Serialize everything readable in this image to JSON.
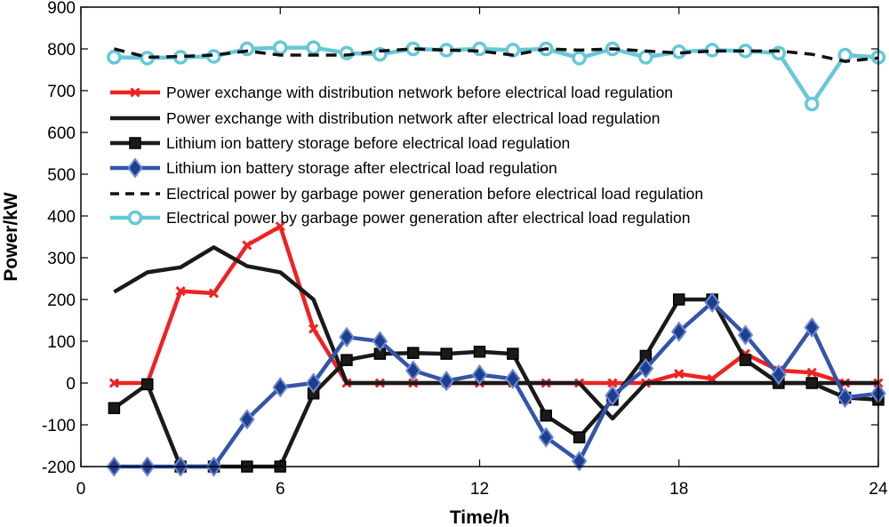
{
  "chart_data": {
    "type": "line",
    "title": "",
    "xlabel": "Time/h",
    "ylabel": "Power/kW",
    "xlim": [
      0,
      24
    ],
    "ylim": [
      -200,
      900
    ],
    "xticks": [
      0,
      6,
      12,
      18,
      24
    ],
    "xtick_labels": [
      "0",
      "6",
      "12",
      "18",
      "24"
    ],
    "yticks": [
      -200,
      -100,
      0,
      100,
      200,
      300,
      400,
      500,
      600,
      700,
      800,
      900
    ],
    "ytick_labels": [
      "-200",
      "-100",
      "0",
      "100",
      "200",
      "300",
      "400",
      "500",
      "600",
      "700",
      "800",
      "900"
    ],
    "grid": false,
    "legend_position": "upper-middle",
    "x": [
      1,
      2,
      3,
      4,
      5,
      6,
      7,
      8,
      9,
      10,
      11,
      12,
      13,
      14,
      15,
      16,
      17,
      18,
      19,
      20,
      21,
      22,
      23,
      24
    ],
    "series": [
      {
        "name": "Power exchange with distribution network before electrical load regulation",
        "color": "#ee2222",
        "dash": "solid",
        "marker": "x",
        "values": [
          0,
          0,
          220,
          215,
          330,
          375,
          130,
          0,
          0,
          0,
          0,
          0,
          0,
          0,
          0,
          0,
          0,
          22,
          10,
          70,
          30,
          25,
          0,
          0
        ]
      },
      {
        "name": "Power exchange with distribution network after electrical load regulation",
        "color": "#1a1a1a",
        "dash": "solid",
        "marker": "none",
        "values": [
          218,
          265,
          277,
          325,
          280,
          265,
          200,
          0,
          0,
          0,
          0,
          0,
          0,
          0,
          0,
          -85,
          0,
          0,
          0,
          0,
          0,
          0,
          0,
          0
        ]
      },
      {
        "name": "Lithium ion battery storage before electrical load regulation",
        "color": "#1a1a1a",
        "dash": "solid",
        "marker": "square",
        "values": [
          -60,
          -3,
          -200,
          -200,
          -200,
          -200,
          -25,
          55,
          70,
          72,
          70,
          75,
          70,
          -78,
          -130,
          -40,
          65,
          200,
          200,
          55,
          0,
          0,
          -35,
          -40
        ]
      },
      {
        "name": "Lithium ion battery storage after electrical load regulation",
        "color": "#3355a8",
        "dash": "solid",
        "marker": "diamond",
        "values": [
          -200,
          -200,
          -200,
          -200,
          -87,
          -10,
          0,
          110,
          100,
          30,
          5,
          20,
          10,
          -130,
          -187,
          -30,
          35,
          123,
          193,
          115,
          20,
          133,
          -35,
          -25
        ]
      },
      {
        "name": "Electrical power by garbage power generation before electrical load regulation",
        "color": "#111111",
        "dash": "dashed",
        "marker": "none",
        "values": [
          800,
          780,
          782,
          785,
          795,
          785,
          785,
          785,
          795,
          800,
          797,
          795,
          785,
          800,
          797,
          800,
          795,
          790,
          795,
          795,
          795,
          787,
          770,
          778
        ]
      },
      {
        "name": "Electrical power by garbage power generation after electrical load regulation",
        "color": "#66c8d8",
        "dash": "solid",
        "marker": "circle",
        "values": [
          780,
          778,
          780,
          782,
          800,
          803,
          803,
          790,
          787,
          800,
          797,
          800,
          797,
          800,
          778,
          800,
          780,
          793,
          797,
          795,
          790,
          668,
          785,
          780
        ]
      }
    ]
  }
}
